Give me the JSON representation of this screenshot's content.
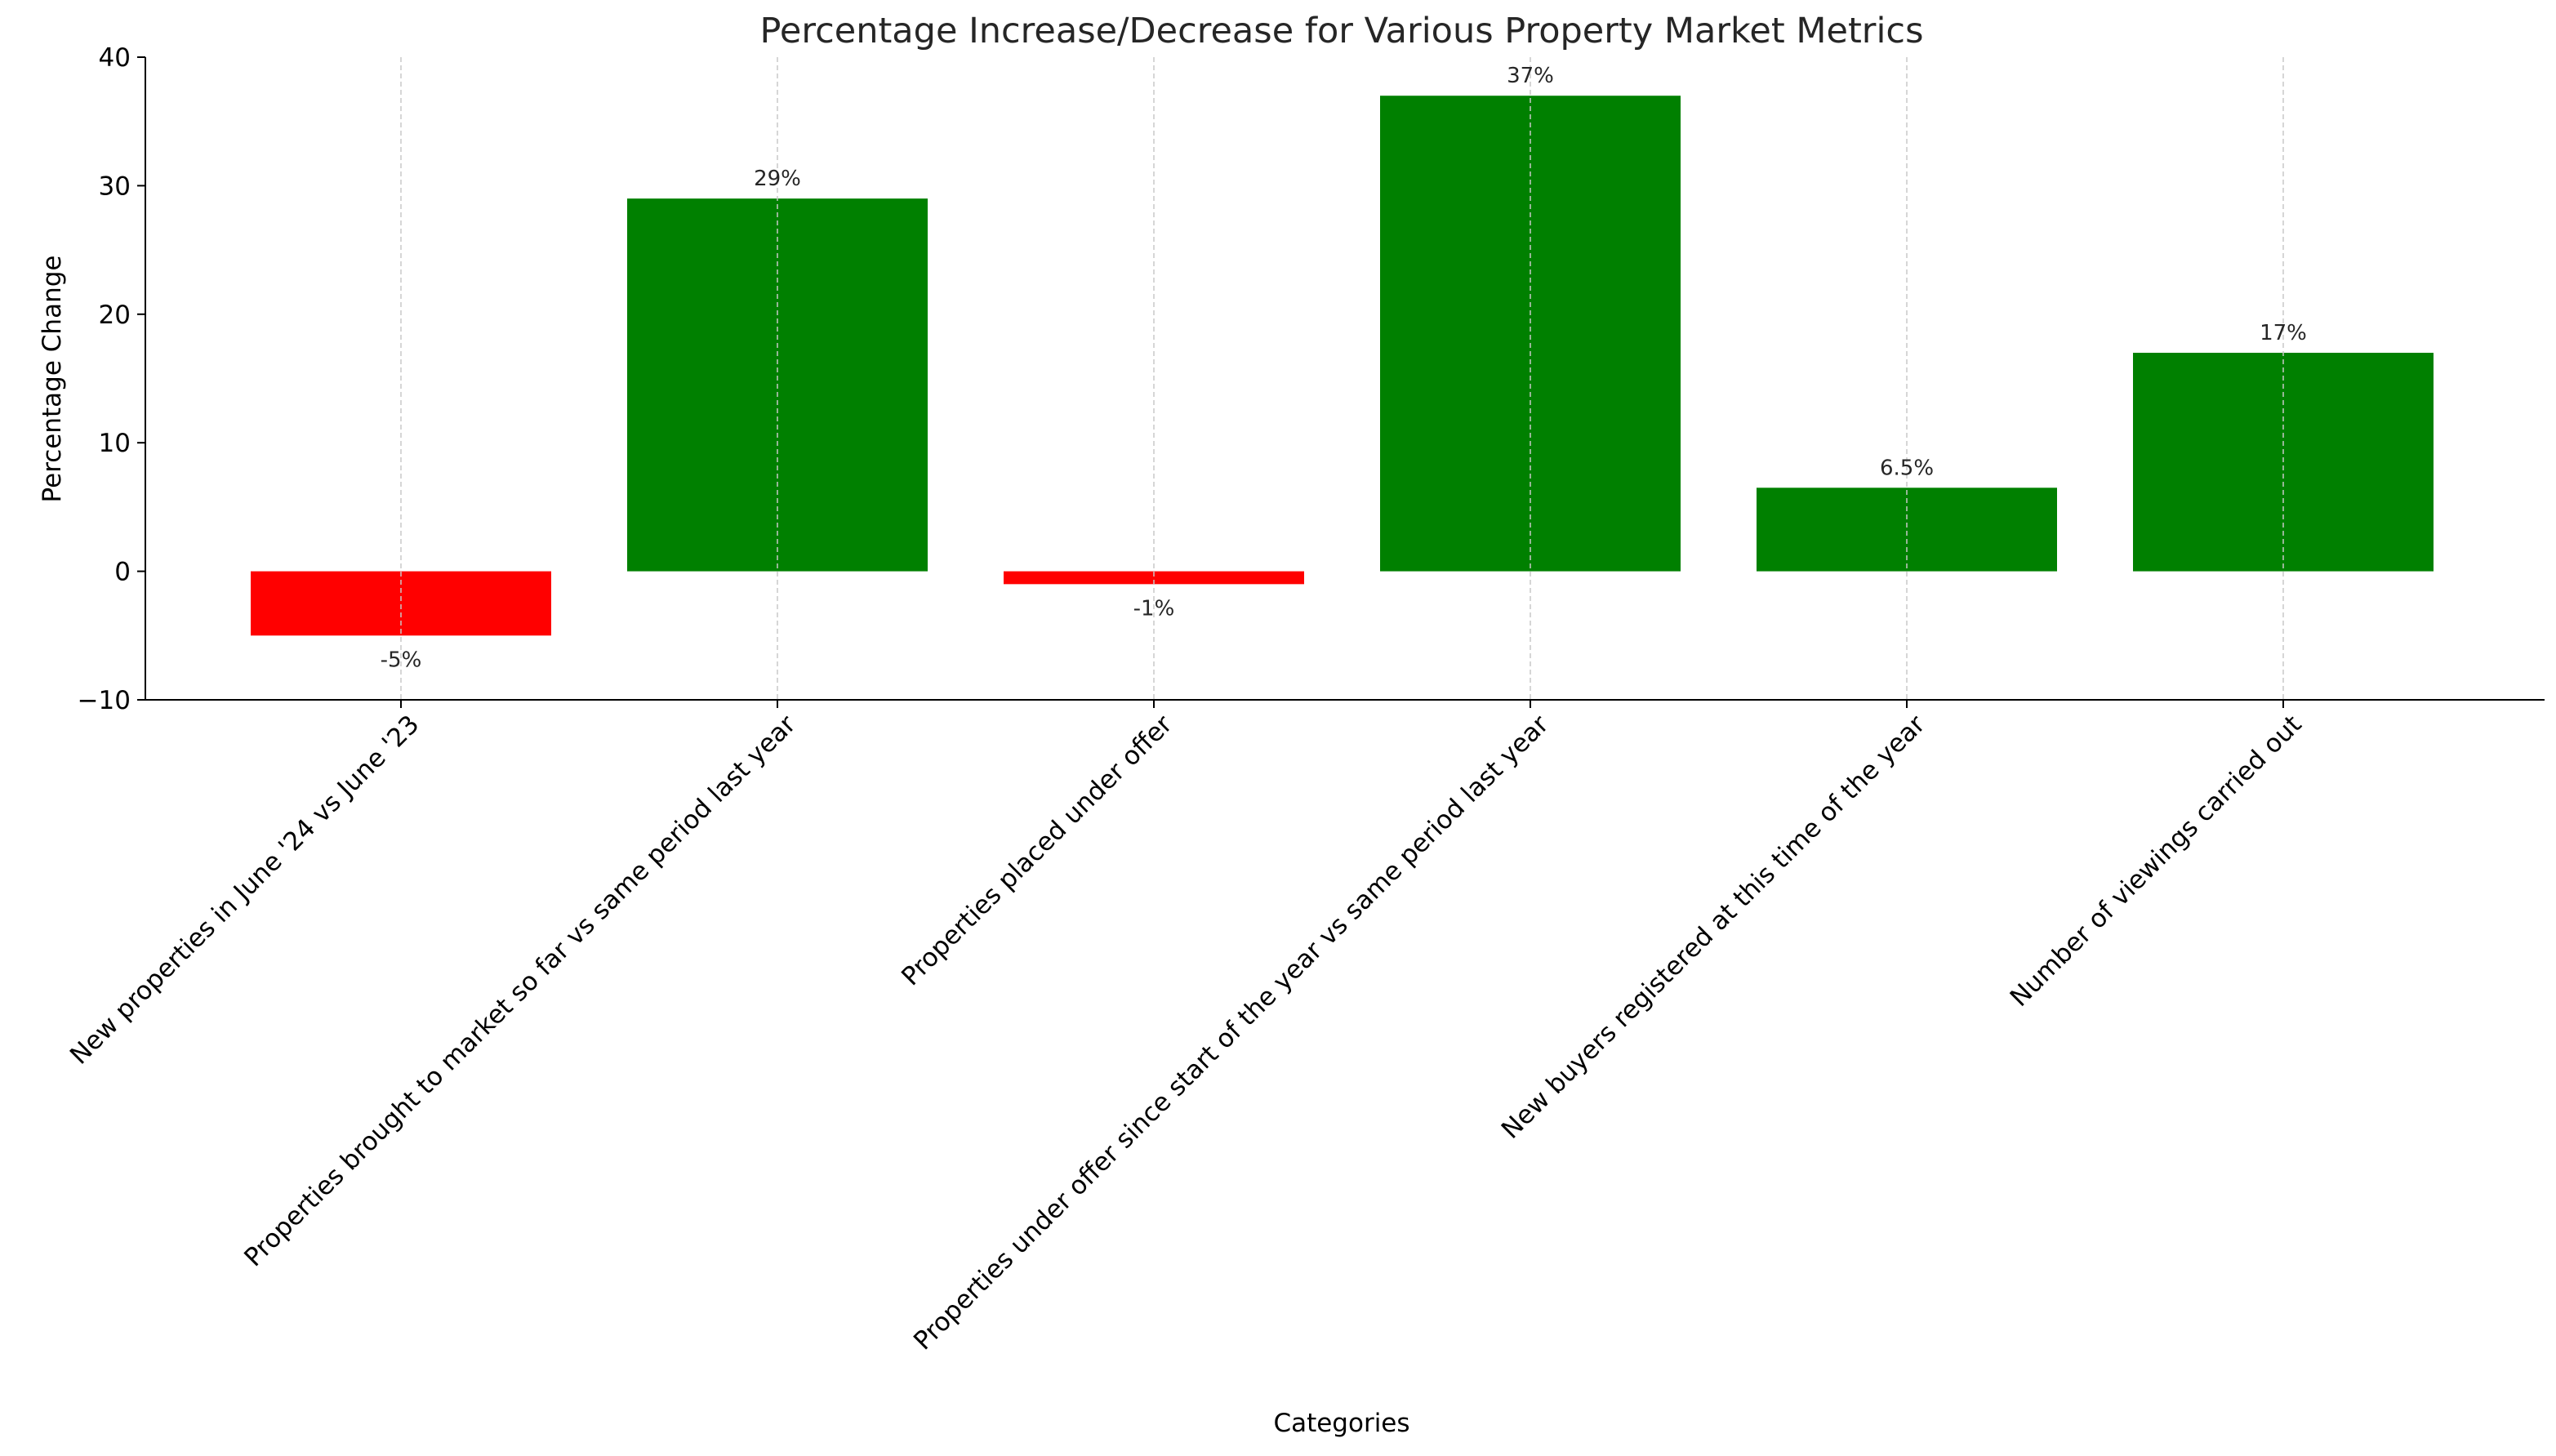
{
  "chart_data": {
    "type": "bar",
    "title": "Percentage Increase/Decrease for Various Property Market Metrics",
    "xlabel": "Categories",
    "ylabel": "Percentage Change",
    "ylim": [
      -10,
      40
    ],
    "yticks": [
      -10,
      0,
      10,
      20,
      30,
      40
    ],
    "grid": "x-dashed",
    "categories": [
      "New properties in June '24 vs June '23",
      "Properties brought to market so far vs same period last year",
      "Properties placed under offer",
      "Properties under offer since start of the year vs same period last year",
      "New buyers registered at this time of the year",
      "Number of viewings carried out"
    ],
    "values": [
      -5,
      29,
      -1,
      37,
      6.5,
      17
    ],
    "data_labels": [
      "-5%",
      "29%",
      "-1%",
      "37%",
      "6.5%",
      "17%"
    ],
    "colors": {
      "positive": "#008000",
      "negative": "#ff0000",
      "grid": "#c8c8c8",
      "axis": "#000000",
      "text": "#262626"
    }
  }
}
